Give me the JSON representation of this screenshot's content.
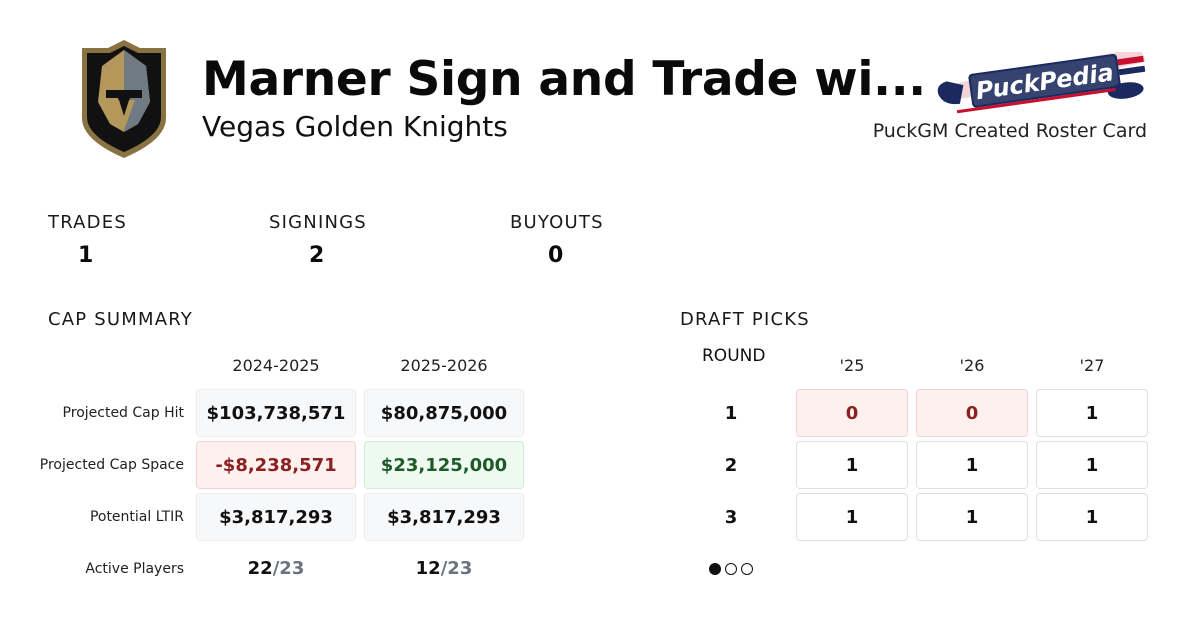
{
  "header": {
    "title": "Marner Sign and Trade wi...",
    "team": "Vegas Golden Knights",
    "brand": "PuckPedia",
    "caption": "PuckGM Created Roster Card"
  },
  "stats": [
    {
      "label": "TRADES",
      "value": "1"
    },
    {
      "label": "SIGNINGS",
      "value": "2"
    },
    {
      "label": "BUYOUTS",
      "value": "0"
    }
  ],
  "cap_summary": {
    "title": "CAP SUMMARY",
    "seasons": [
      "2024-2025",
      "2025-2026"
    ],
    "rows": {
      "cap_hit": {
        "label": "Projected Cap Hit",
        "values": [
          "$103,738,571",
          "$80,875,000"
        ]
      },
      "cap_space": {
        "label": "Projected Cap Space",
        "values": [
          "-$8,238,571",
          "$23,125,000"
        ]
      },
      "ltir": {
        "label": "Potential LTIR",
        "values": [
          "$3,817,293",
          "$3,817,293"
        ]
      },
      "active": {
        "label": "Active Players",
        "counts": [
          "22",
          "12"
        ],
        "max": "/23"
      }
    }
  },
  "draft_picks": {
    "title": "DRAFT PICKS",
    "round_label": "ROUND",
    "years": [
      "'25",
      "'26",
      "'27"
    ],
    "rounds": [
      {
        "round": "1",
        "picks": [
          "0",
          "0",
          "1"
        ]
      },
      {
        "round": "2",
        "picks": [
          "1",
          "1",
          "1"
        ]
      },
      {
        "round": "3",
        "picks": [
          "1",
          "1",
          "1"
        ]
      }
    ],
    "pager": {
      "total": 3,
      "active": 1
    }
  },
  "colors": {
    "negative": "#8a2020",
    "positive": "#1f5a2a",
    "team_gold": "#B4975A",
    "team_steel": "#333F48",
    "brand_navy": "#1b2a5e",
    "brand_red": "#c8102e"
  }
}
